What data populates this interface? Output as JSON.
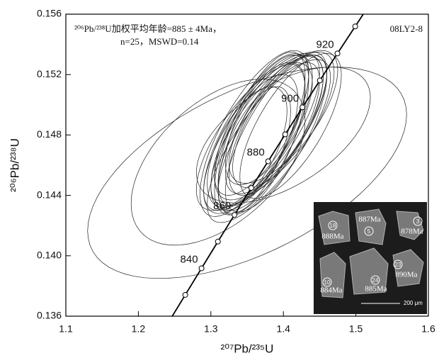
{
  "chart_data": {
    "type": "concordia",
    "annotation": [
      "²⁰⁶Pb/²³⁸U加权平均年龄=885 ± 4Ma，",
      "n=25，MSWD=0.14"
    ],
    "sample": "08LY2-8",
    "xlabel": "²⁰⁷Pb/²³⁵U",
    "ylabel": "²⁰⁶Pb/²³⁸U",
    "xlim": [
      1.1,
      1.6
    ],
    "ylim": [
      0.136,
      0.156
    ],
    "xticks": [
      1.1,
      1.2,
      1.3,
      1.4,
      1.5,
      1.6
    ],
    "yticks": [
      0.136,
      {
        "value": 0.14,
        "label": "0.140"
      },
      0.144,
      0.148,
      0.152,
      0.156
    ],
    "concordia": {
      "ages": [
        null,
        840,
        null,
        860,
        null,
        880,
        null,
        900,
        null,
        920,
        null
      ],
      "x": [
        1.2647,
        1.2871,
        1.3097,
        1.3326,
        1.3557,
        1.379,
        1.4025,
        1.4263,
        1.4503,
        1.4746,
        1.4991
      ],
      "y": [
        0.13741,
        0.13917,
        0.14094,
        0.14271,
        0.14449,
        0.14626,
        0.14804,
        0.14983,
        0.15161,
        0.1534,
        0.15519
      ]
    },
    "ellipses": {
      "x": [
        1.35,
        1.31,
        1.4,
        1.36,
        1.37,
        1.38,
        1.36,
        1.39,
        1.37,
        1.38,
        1.35,
        1.4,
        1.37,
        1.36,
        1.39,
        1.38,
        1.37,
        1.36,
        1.4,
        1.38,
        1.37,
        1.39,
        1.36,
        1.38,
        1.41
      ],
      "y": [
        0.1455,
        0.1462,
        0.148,
        0.1478,
        0.1482,
        0.1485,
        0.1475,
        0.1488,
        0.148,
        0.1483,
        0.1472,
        0.149,
        0.1477,
        0.1481,
        0.1486,
        0.1479,
        0.1484,
        0.147,
        0.1492,
        0.1476,
        0.1487,
        0.1481,
        0.1479,
        0.149,
        0.1486
      ],
      "sx": [
        0.22,
        0.12,
        0.12,
        0.07,
        0.08,
        0.075,
        0.06,
        0.07,
        0.065,
        0.08,
        0.055,
        0.07,
        0.06,
        0.075,
        0.065,
        0.07,
        0.06,
        0.05,
        0.075,
        0.085,
        0.065,
        0.07,
        0.08,
        0.06,
        0.07
      ],
      "sy": [
        0.007,
        0.0055,
        0.0045,
        0.005,
        0.0052,
        0.0048,
        0.0045,
        0.0047,
        0.0053,
        0.005,
        0.004,
        0.0045,
        0.005,
        0.0055,
        0.0046,
        0.0049,
        0.0051,
        0.0042,
        0.0044,
        0.0054,
        0.0047,
        0.0052,
        0.0049,
        0.0043,
        0.0048
      ],
      "rho": [
        0.55,
        0.5,
        0.55,
        0.7,
        0.75,
        0.7,
        0.65,
        0.72,
        0.68,
        0.74,
        0.6,
        0.7,
        0.66,
        0.73,
        0.7,
        0.75,
        0.69,
        0.62,
        0.7,
        0.78,
        0.71,
        0.74,
        0.72,
        0.66,
        0.7
      ]
    },
    "inset": {
      "grain_numbers": [
        "18",
        "5",
        "3",
        "10",
        "24",
        "23"
      ],
      "grain_ages": [
        "888Ma",
        "887Ma",
        "878Ma",
        "884Ma",
        "885Ma",
        "890Ma"
      ],
      "scale": "200 μm"
    }
  }
}
